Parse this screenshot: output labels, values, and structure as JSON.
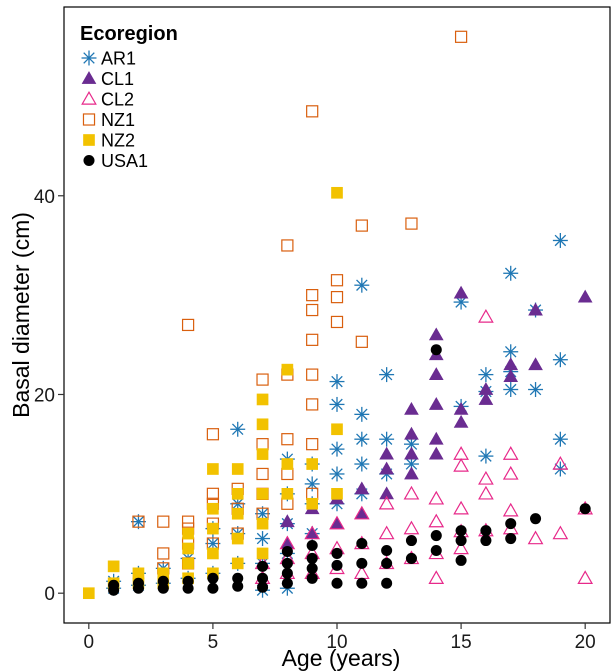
{
  "chart_data": {
    "type": "scatter",
    "title": "",
    "xlabel": "Age (years)",
    "ylabel": "Basal diameter (cm)",
    "xlim": [
      -1,
      21
    ],
    "ylim": [
      -3,
      59
    ],
    "x_ticks": [
      0,
      5,
      10,
      15,
      20
    ],
    "y_ticks": [
      0,
      20,
      40
    ],
    "grid": false,
    "legend": {
      "title": "Ecoregion",
      "position": "top-left"
    },
    "series": [
      {
        "name": "AR1",
        "marker": "asterisk",
        "color": "#1f77b4",
        "points": [
          [
            1,
            0.5
          ],
          [
            1,
            1.2
          ],
          [
            2,
            7.2
          ],
          [
            2,
            0.8
          ],
          [
            2,
            2
          ],
          [
            3,
            1
          ],
          [
            3,
            2.5
          ],
          [
            4,
            1.5
          ],
          [
            4,
            3.5
          ],
          [
            5,
            2
          ],
          [
            5,
            5
          ],
          [
            5,
            6.5
          ],
          [
            6,
            3
          ],
          [
            6,
            6
          ],
          [
            6,
            9
          ],
          [
            6,
            16.5
          ],
          [
            7,
            3
          ],
          [
            7,
            5.5
          ],
          [
            7,
            8
          ],
          [
            7,
            0.3
          ],
          [
            8,
            4
          ],
          [
            8,
            7
          ],
          [
            8,
            10
          ],
          [
            8,
            13.5
          ],
          [
            8,
            0.5
          ],
          [
            9,
            6
          ],
          [
            9,
            9
          ],
          [
            9,
            11
          ],
          [
            9,
            13
          ],
          [
            10,
            9
          ],
          [
            10,
            12
          ],
          [
            10,
            14.5
          ],
          [
            10,
            19
          ],
          [
            10,
            21.3
          ],
          [
            11,
            10
          ],
          [
            11,
            13
          ],
          [
            11,
            15.5
          ],
          [
            11,
            18
          ],
          [
            11,
            31
          ],
          [
            12,
            12
          ],
          [
            12,
            15.5
          ],
          [
            12,
            22
          ],
          [
            13,
            13
          ],
          [
            13,
            15
          ],
          [
            15,
            18.8
          ],
          [
            15,
            29.3
          ],
          [
            16,
            13.8
          ],
          [
            16,
            20.3
          ],
          [
            16,
            22
          ],
          [
            17,
            20.5
          ],
          [
            17,
            22.3
          ],
          [
            17,
            24.3
          ],
          [
            17,
            32.2
          ],
          [
            18,
            20.5
          ],
          [
            18,
            28.5
          ],
          [
            19,
            12.5
          ],
          [
            19,
            15.5
          ],
          [
            19,
            23.5
          ],
          [
            19,
            35.5
          ]
        ]
      },
      {
        "name": "CL1",
        "marker": "triangle-filled",
        "color": "#6a2c91",
        "points": [
          [
            8,
            5
          ],
          [
            8,
            7.2
          ],
          [
            9,
            6
          ],
          [
            9,
            8.5
          ],
          [
            10,
            7
          ],
          [
            10,
            9.5
          ],
          [
            11,
            8
          ],
          [
            11,
            10.5
          ],
          [
            12,
            10
          ],
          [
            12,
            12.5
          ],
          [
            12,
            14
          ],
          [
            13,
            12
          ],
          [
            13,
            14
          ],
          [
            13,
            16
          ],
          [
            13,
            18.5
          ],
          [
            14,
            14
          ],
          [
            14,
            15.5
          ],
          [
            14,
            19
          ],
          [
            14,
            22
          ],
          [
            14,
            24
          ],
          [
            14,
            26
          ],
          [
            15,
            17.2
          ],
          [
            15,
            18.5
          ],
          [
            15,
            30.2
          ],
          [
            16,
            19.5
          ],
          [
            16,
            20.5
          ],
          [
            17,
            21.8
          ],
          [
            17,
            23
          ],
          [
            18,
            23
          ],
          [
            18,
            28.5
          ],
          [
            20,
            29.8
          ]
        ]
      },
      {
        "name": "CL2",
        "marker": "triangle-open",
        "color": "#e7298a",
        "points": [
          [
            7,
            1.5
          ],
          [
            7,
            3
          ],
          [
            8,
            2
          ],
          [
            8,
            3.5
          ],
          [
            8,
            5
          ],
          [
            9,
            2
          ],
          [
            9,
            4
          ],
          [
            9,
            6
          ],
          [
            10,
            2.5
          ],
          [
            10,
            4.5
          ],
          [
            10,
            7
          ],
          [
            11,
            2
          ],
          [
            11,
            5
          ],
          [
            11,
            8
          ],
          [
            12,
            3
          ],
          [
            12,
            6
          ],
          [
            12,
            9
          ],
          [
            13,
            3.5
          ],
          [
            13,
            6.5
          ],
          [
            13,
            10
          ],
          [
            14,
            1.5
          ],
          [
            14,
            4
          ],
          [
            14,
            7.2
          ],
          [
            14,
            9.5
          ],
          [
            15,
            4.5
          ],
          [
            15,
            6.2
          ],
          [
            15,
            8.5
          ],
          [
            15,
            12.8
          ],
          [
            15,
            14
          ],
          [
            16,
            6.3
          ],
          [
            16,
            10
          ],
          [
            16,
            11.5
          ],
          [
            16,
            27.8
          ],
          [
            17,
            6.5
          ],
          [
            17,
            8.3
          ],
          [
            17,
            12
          ],
          [
            17,
            14
          ],
          [
            18,
            5.5
          ],
          [
            19,
            6
          ],
          [
            19,
            13
          ],
          [
            20,
            1.5
          ],
          [
            20,
            8.5
          ]
        ]
      },
      {
        "name": "NZ1",
        "marker": "square-open",
        "color": "#d95f0e",
        "points": [
          [
            2,
            7.2
          ],
          [
            3,
            2.5
          ],
          [
            3,
            4
          ],
          [
            3,
            7.2
          ],
          [
            4,
            3
          ],
          [
            4,
            5
          ],
          [
            4,
            6.5
          ],
          [
            4,
            7.2
          ],
          [
            4,
            27
          ],
          [
            5,
            5
          ],
          [
            5,
            7
          ],
          [
            5,
            9
          ],
          [
            5,
            10
          ],
          [
            5,
            16
          ],
          [
            6,
            6
          ],
          [
            6,
            8.5
          ],
          [
            6,
            10.5
          ],
          [
            7,
            8
          ],
          [
            7,
            10
          ],
          [
            7,
            12
          ],
          [
            7,
            15
          ],
          [
            7,
            21.5
          ],
          [
            8,
            9
          ],
          [
            8,
            12
          ],
          [
            8,
            15.5
          ],
          [
            8,
            22
          ],
          [
            8,
            35
          ],
          [
            9,
            10
          ],
          [
            9,
            15
          ],
          [
            9,
            19
          ],
          [
            9,
            22
          ],
          [
            9,
            25.5
          ],
          [
            9,
            28.5
          ],
          [
            9,
            30
          ],
          [
            9,
            48.5
          ],
          [
            10,
            27.3
          ],
          [
            10,
            29.8
          ],
          [
            10,
            31.5
          ],
          [
            11,
            25.3
          ],
          [
            11,
            37
          ],
          [
            13,
            37.2
          ],
          [
            15,
            56
          ]
        ]
      },
      {
        "name": "NZ2",
        "marker": "square-filled",
        "color": "#f2c200",
        "points": [
          [
            0,
            0
          ],
          [
            1,
            2.7
          ],
          [
            1,
            1
          ],
          [
            2,
            1
          ],
          [
            2,
            2
          ],
          [
            3,
            1
          ],
          [
            3,
            2
          ],
          [
            4,
            1.5
          ],
          [
            4,
            3
          ],
          [
            4,
            4.5
          ],
          [
            4,
            6
          ],
          [
            5,
            2
          ],
          [
            5,
            4
          ],
          [
            5,
            6.5
          ],
          [
            5,
            8.5
          ],
          [
            5,
            12.5
          ],
          [
            6,
            3
          ],
          [
            6,
            5.5
          ],
          [
            6,
            8
          ],
          [
            6,
            10
          ],
          [
            6,
            12.5
          ],
          [
            7,
            4
          ],
          [
            7,
            7
          ],
          [
            7,
            10
          ],
          [
            7,
            14
          ],
          [
            7,
            17
          ],
          [
            7,
            19.5
          ],
          [
            8,
            10
          ],
          [
            8,
            13
          ],
          [
            8,
            22.5
          ],
          [
            9,
            9
          ],
          [
            9,
            13
          ],
          [
            10,
            10
          ],
          [
            10,
            16.5
          ],
          [
            10,
            40.3
          ]
        ]
      },
      {
        "name": "USA1",
        "marker": "circle-filled",
        "color": "#000000",
        "points": [
          [
            1,
            0.3
          ],
          [
            1,
            0.8
          ],
          [
            2,
            0.5
          ],
          [
            2,
            1
          ],
          [
            3,
            0.5
          ],
          [
            3,
            1.2
          ],
          [
            4,
            0.5
          ],
          [
            4,
            1.2
          ],
          [
            5,
            0.5
          ],
          [
            5,
            1.5
          ],
          [
            6,
            0.7
          ],
          [
            6,
            1.5
          ],
          [
            7,
            0.6
          ],
          [
            7,
            1.5
          ],
          [
            7,
            2.7
          ],
          [
            8,
            1
          ],
          [
            8,
            2
          ],
          [
            8,
            3
          ],
          [
            8,
            4.2
          ],
          [
            9,
            1.5
          ],
          [
            9,
            2.5
          ],
          [
            9,
            3.5
          ],
          [
            9,
            4.8
          ],
          [
            10,
            1
          ],
          [
            10,
            2.8
          ],
          [
            10,
            4
          ],
          [
            11,
            1
          ],
          [
            11,
            3
          ],
          [
            11,
            5
          ],
          [
            12,
            1
          ],
          [
            12,
            3
          ],
          [
            12,
            4.3
          ],
          [
            13,
            3.5
          ],
          [
            13,
            5.3
          ],
          [
            14,
            4.3
          ],
          [
            14,
            5.8
          ],
          [
            14,
            24.5
          ],
          [
            15,
            3.3
          ],
          [
            15,
            5.3
          ],
          [
            15,
            6.3
          ],
          [
            16,
            5.3
          ],
          [
            16,
            6.3
          ],
          [
            17,
            5.5
          ],
          [
            17,
            7
          ],
          [
            18,
            7.5
          ],
          [
            20,
            8.5
          ]
        ]
      }
    ]
  }
}
